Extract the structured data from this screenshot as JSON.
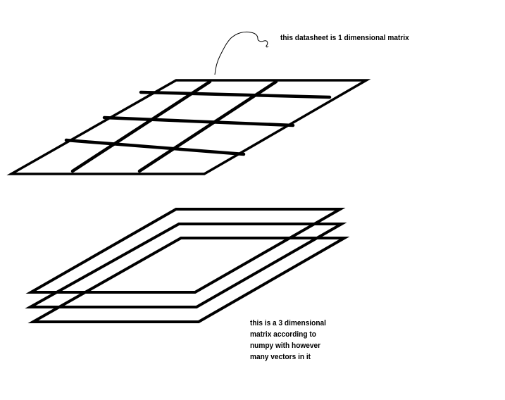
{
  "annotations": {
    "top": "this datasheet is 1 dimensional matrix",
    "bottom_lines": [
      "this is a 3 dimensional",
      "matrix according to",
      "numpy with however",
      "many vectors in it"
    ]
  },
  "colors": {
    "ink": "#000000",
    "background": "#ffffff"
  }
}
